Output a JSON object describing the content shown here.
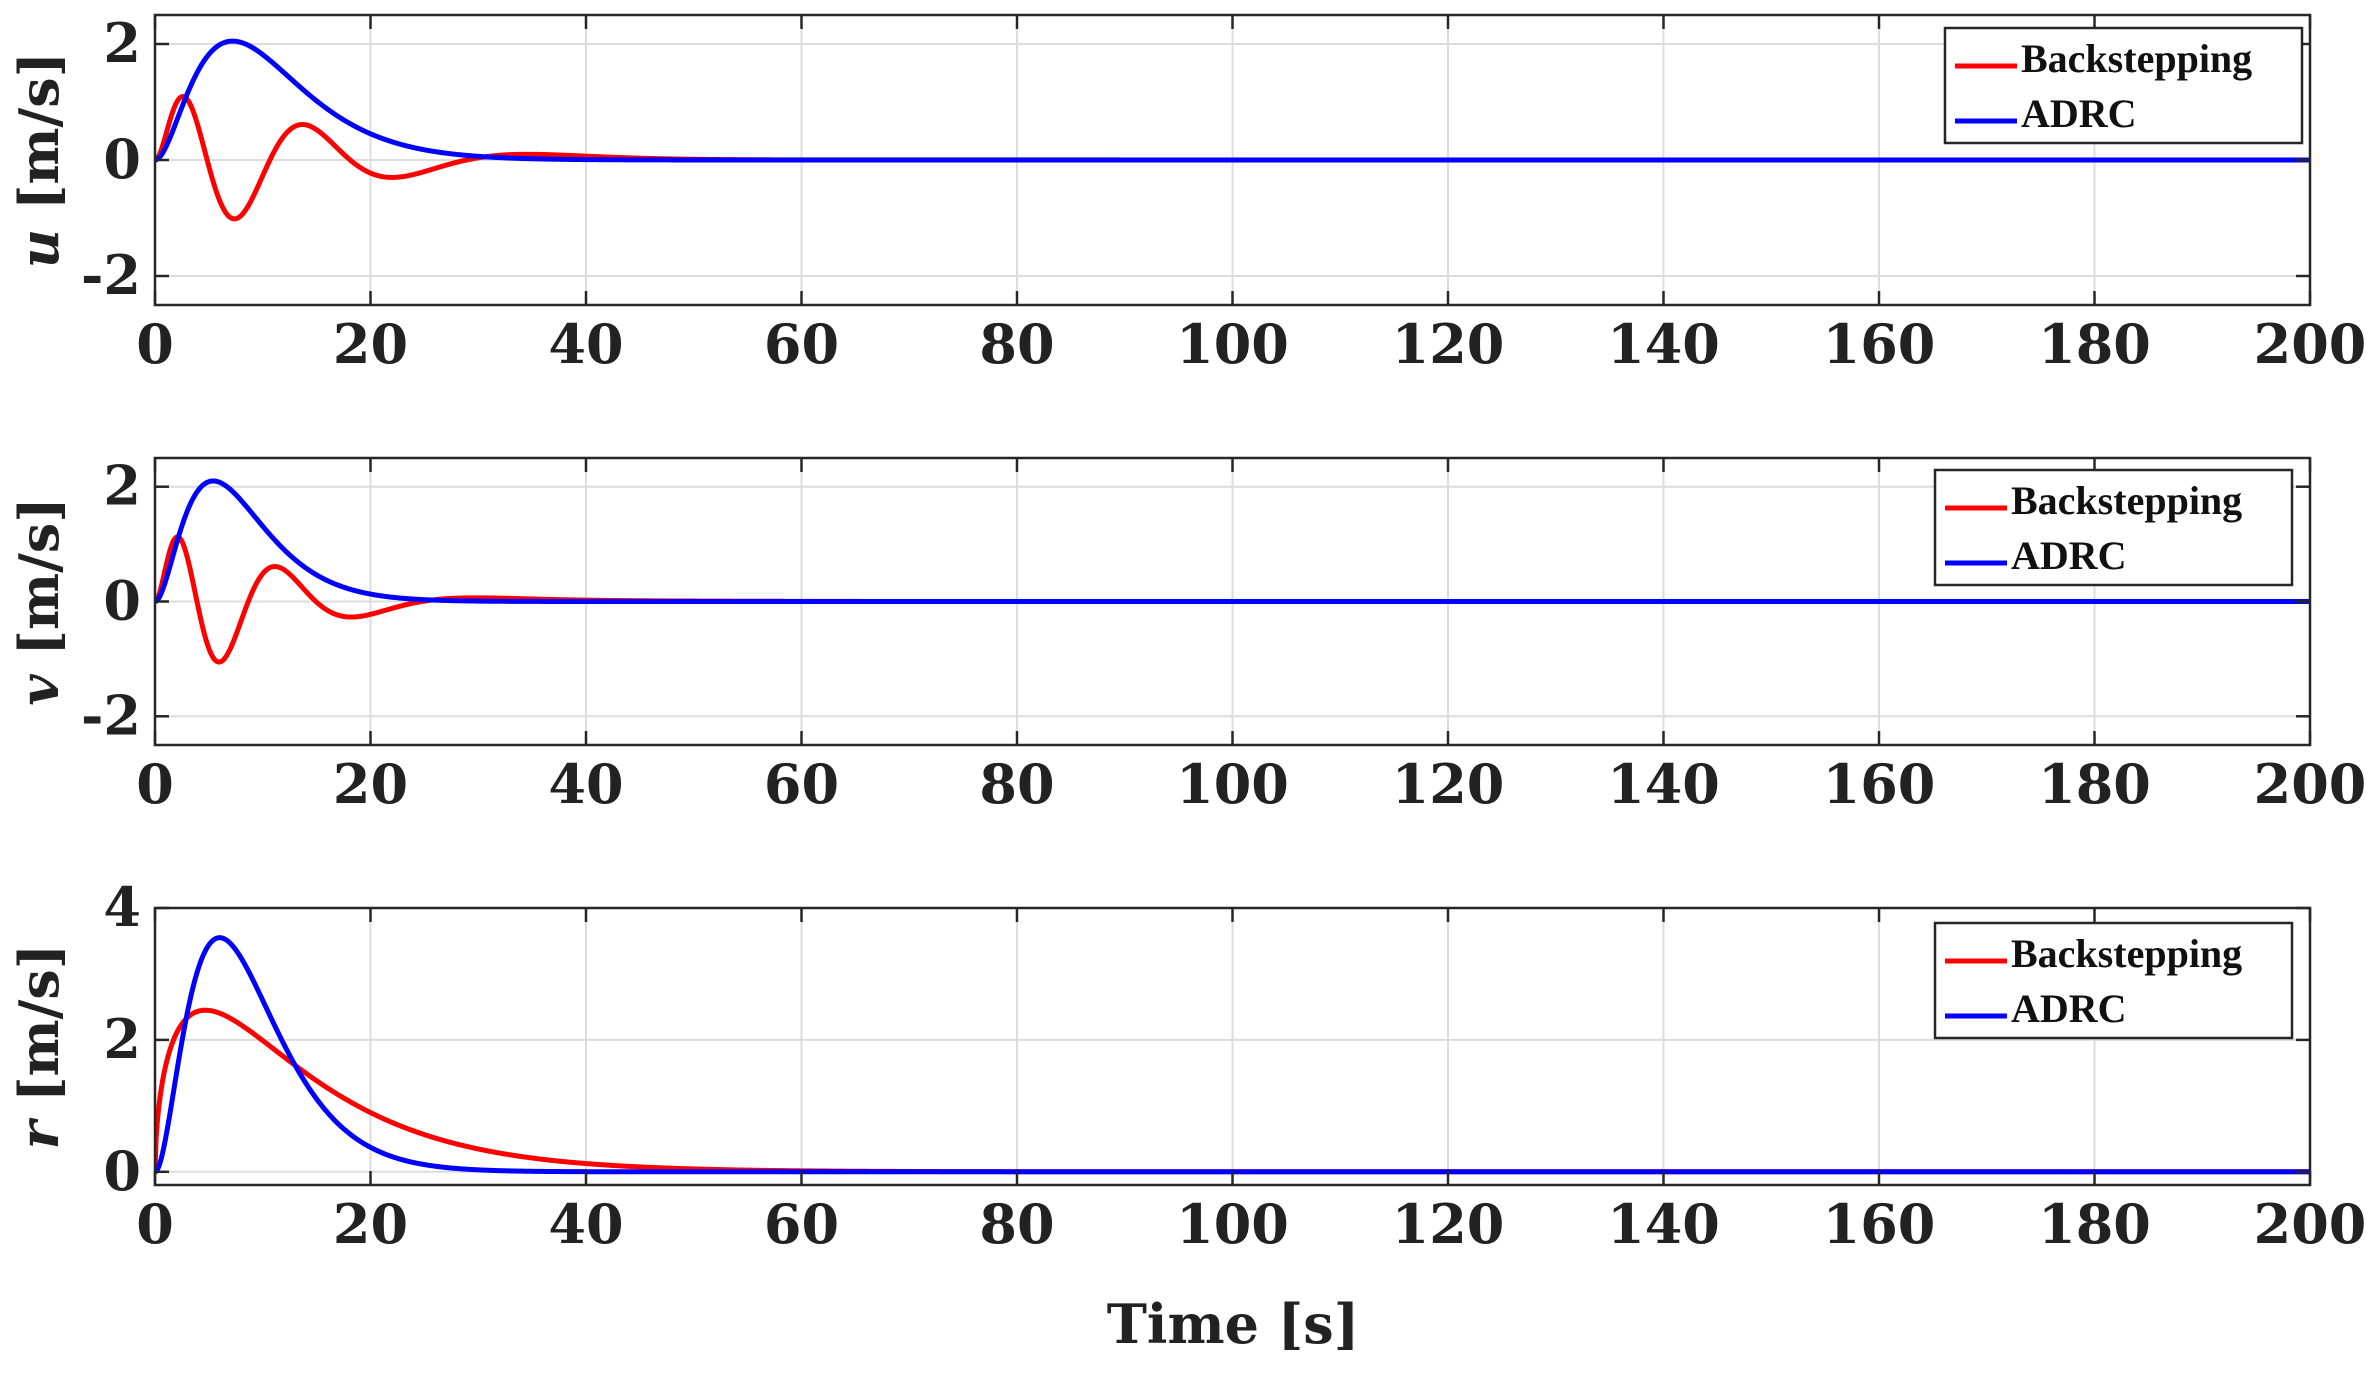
{
  "chart_data": [
    {
      "type": "line",
      "ylabel_var": "u",
      "ylabel_unit": " [m/s]",
      "xlabel": "",
      "xlim": [
        0,
        200
      ],
      "ylim": [
        -2.5,
        2.5
      ],
      "xticks": [
        0,
        20,
        40,
        60,
        80,
        100,
        120,
        140,
        160,
        180,
        200
      ],
      "yticks": [
        -2,
        0,
        2
      ],
      "grid": true,
      "legend_position": "top-right",
      "series": [
        {
          "name": "Backstepping",
          "color": "#ff0000",
          "model": {
            "kind": "osc",
            "A": 1.95,
            "tau": 12,
            "f": 0.112,
            "gain": 1.9,
            "kr": 0.9,
            "phase": 0
          }
        },
        {
          "name": "ADRC",
          "color": "#0000ff",
          "model": {
            "kind": "pulse",
            "A": 2.05,
            "k": 2,
            "tau": 3.6
          }
        }
      ]
    },
    {
      "type": "line",
      "ylabel_var": "v",
      "ylabel_unit": " [m/s]",
      "xlabel": "",
      "xlim": [
        0,
        200
      ],
      "ylim": [
        -2.5,
        2.5
      ],
      "xticks": [
        0,
        20,
        40,
        60,
        80,
        100,
        120,
        140,
        160,
        180,
        200
      ],
      "yticks": [
        -2,
        0,
        2
      ],
      "grid": true,
      "legend_position": "top-right",
      "series": [
        {
          "name": "Backstepping",
          "color": "#ff0000",
          "model": {
            "kind": "osc",
            "A": 2.15,
            "tau": 9,
            "f": 0.14,
            "gain": 1.6,
            "kr": 0.9,
            "phase": 0
          }
        },
        {
          "name": "ADRC",
          "color": "#0000ff",
          "model": {
            "kind": "pulse",
            "A": 2.1,
            "k": 2,
            "tau": 2.7
          }
        }
      ]
    },
    {
      "type": "line",
      "ylabel_var": "r",
      "ylabel_unit": " [m/s]",
      "xlabel": "Time [s]",
      "xlim": [
        0,
        200
      ],
      "ylim": [
        -0.2,
        4
      ],
      "xticks": [
        0,
        20,
        40,
        60,
        80,
        100,
        120,
        140,
        160,
        180,
        200
      ],
      "yticks": [
        0,
        2,
        4
      ],
      "grid": true,
      "legend_position": "top-right",
      "series": [
        {
          "name": "Backstepping",
          "color": "#ff0000",
          "model": {
            "kind": "pulse",
            "A": 2.45,
            "k": 0.55,
            "tau": 8.5
          }
        },
        {
          "name": "ADRC",
          "color": "#0000ff",
          "model": {
            "kind": "pulse",
            "A": 3.55,
            "k": 2,
            "tau": 3
          }
        }
      ]
    }
  ]
}
